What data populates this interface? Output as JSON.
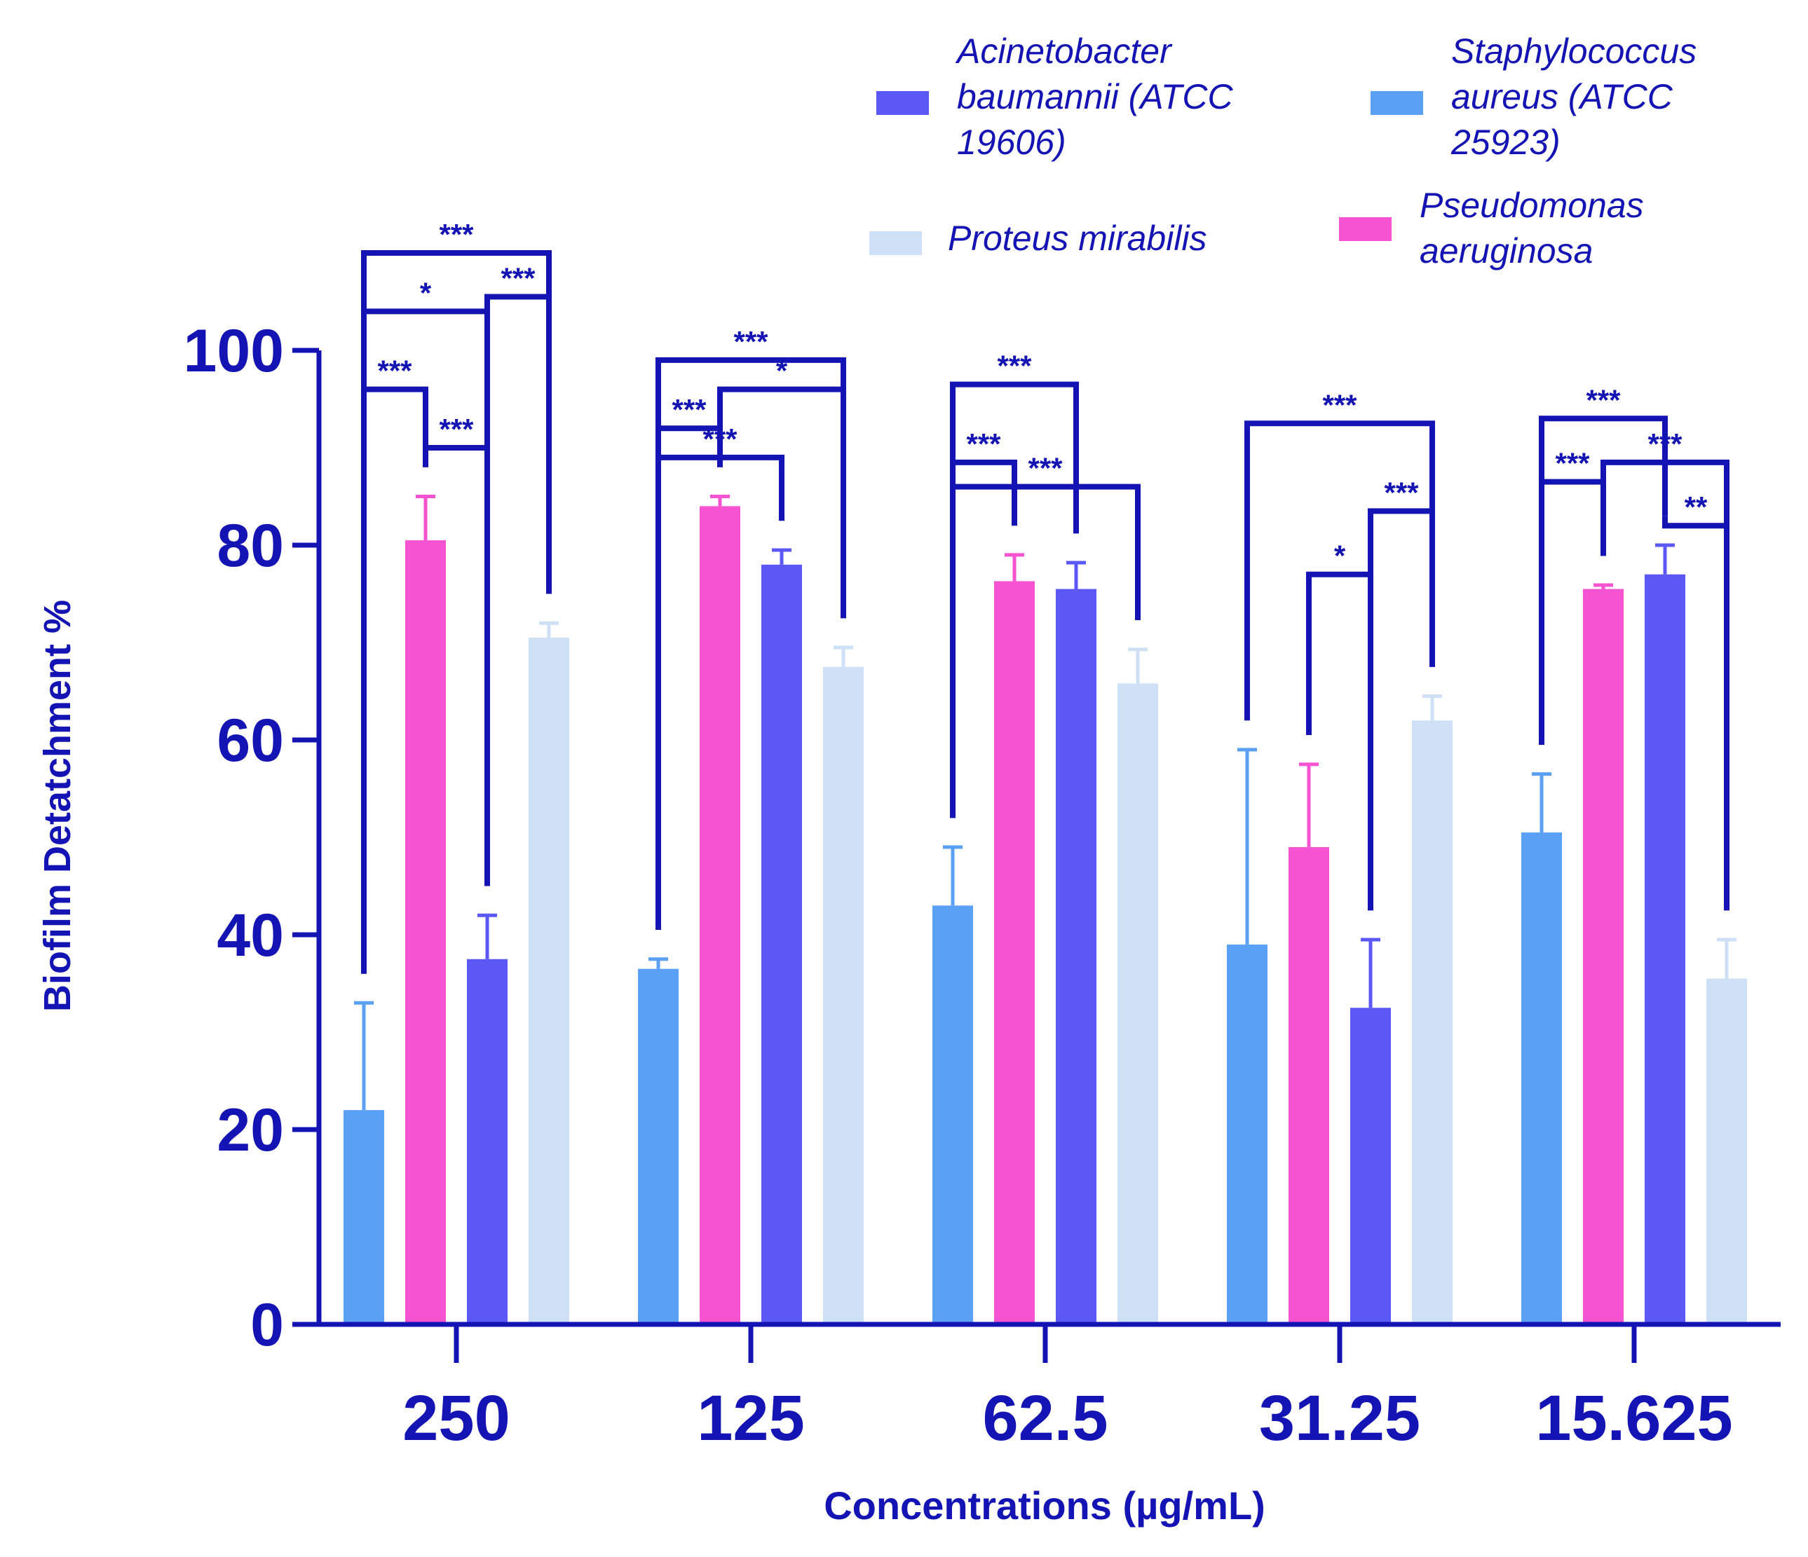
{
  "chart_data": {
    "type": "bar",
    "title": "",
    "xlabel": "Concentrations (µg/mL)",
    "ylabel": "Biofilm Detatchment %",
    "ylim": [
      0,
      100
    ],
    "yticks": [
      "0",
      "20",
      "40",
      "60",
      "80",
      "100"
    ],
    "grid": false,
    "categories": [
      "250",
      "125",
      "62.5",
      "31.25",
      "15.625"
    ],
    "series": [
      {
        "key": "sa",
        "name": "Staphylococcus aureus (ATCC 25923)",
        "color": "#5aa0f5",
        "values": [
          22,
          36.5,
          43,
          39,
          50.5
        ],
        "errors": [
          11,
          1,
          6,
          20,
          6
        ]
      },
      {
        "key": "pa",
        "name": "Pseudomonas aeruginosa",
        "color": "#f553d2",
        "values": [
          80.5,
          84,
          76.3,
          49,
          75.5
        ],
        "errors": [
          4.5,
          1,
          2.7,
          8.5,
          0.4
        ]
      },
      {
        "key": "ab",
        "name": "Acinetobacter baumannii (ATCC 19606)",
        "color": "#5c58f5",
        "values": [
          37.5,
          78,
          75.5,
          32.5,
          77
        ],
        "errors": [
          4.5,
          1.5,
          2.7,
          7,
          3
        ]
      },
      {
        "key": "pm",
        "name": "Proteus mirabilis",
        "color": "#cde0f6",
        "values": [
          70.5,
          67.5,
          65.8,
          62,
          35.5
        ],
        "errors": [
          1.5,
          2,
          3.5,
          2.5,
          4
        ]
      }
    ],
    "legend": {
      "position": "top-right",
      "entries": [
        {
          "series": "ab",
          "lines": [
            "Acinetobacter",
            "baumannii  (ATCC",
            "19606)"
          ]
        },
        {
          "series": "sa",
          "lines": [
            "Staphylococcus",
            "aureus (ATCC",
            "25923)"
          ]
        },
        {
          "series": "pm",
          "lines": [
            "Proteus mirabilis"
          ]
        },
        {
          "series": "pa",
          "lines": [
            "Pseudomonas",
            "aeruginosa"
          ]
        }
      ]
    },
    "significance": [
      {
        "group": 0,
        "from": 0,
        "to": 3,
        "label": "***",
        "level": 110
      },
      {
        "group": 0,
        "from": 0,
        "to": 2,
        "label": "*",
        "level": 104
      },
      {
        "group": 0,
        "from": 2,
        "to": 3,
        "label": "***",
        "level": 105.5
      },
      {
        "group": 0,
        "from": 0,
        "to": 1,
        "label": "***",
        "level": 96
      },
      {
        "group": 0,
        "from": 1,
        "to": 2,
        "label": "***",
        "level": 90
      },
      {
        "group": 1,
        "from": 0,
        "to": 3,
        "label": "***",
        "level": 99
      },
      {
        "group": 1,
        "from": 1,
        "to": 3,
        "label": "*",
        "level": 96
      },
      {
        "group": 1,
        "from": 0,
        "to": 1,
        "label": "***",
        "level": 92
      },
      {
        "group": 1,
        "from": 0,
        "to": 2,
        "label": "***",
        "level": 89
      },
      {
        "group": 2,
        "from": 0,
        "to": 2,
        "label": "***",
        "level": 96.5
      },
      {
        "group": 2,
        "from": 0,
        "to": 1,
        "label": "***",
        "level": 88.5
      },
      {
        "group": 2,
        "from": 0,
        "to": 3,
        "label": "***",
        "level": 86
      },
      {
        "group": 3,
        "from": 0,
        "to": 3,
        "label": "***",
        "level": 92.5
      },
      {
        "group": 3,
        "from": 2,
        "to": 3,
        "label": "***",
        "level": 83.5
      },
      {
        "group": 3,
        "from": 1,
        "to": 2,
        "label": "*",
        "level": 77
      },
      {
        "group": 4,
        "from": 0,
        "to": 2,
        "label": "***",
        "level": 93
      },
      {
        "group": 4,
        "from": 0,
        "to": 1,
        "label": "***",
        "level": 86.5
      },
      {
        "group": 4,
        "from": 1,
        "to": 3,
        "label": "***",
        "level": 88.5
      },
      {
        "group": 4,
        "from": 2,
        "to": 3,
        "label": "**",
        "level": 82
      }
    ]
  }
}
